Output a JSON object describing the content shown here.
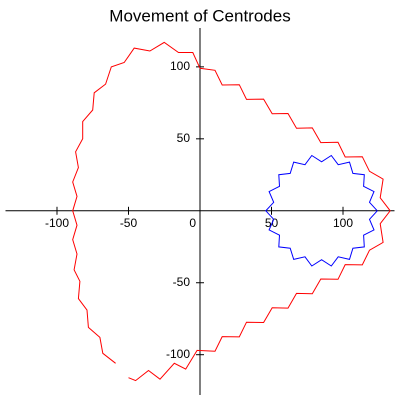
{
  "chart_data": {
    "type": "line",
    "title": "Movement of Centrodes",
    "xlim": [
      -136,
      136
    ],
    "ylim": [
      -128,
      127
    ],
    "xticks": [
      -100,
      -50,
      0,
      50,
      100
    ],
    "yticks": [
      -100,
      -50,
      50,
      100
    ],
    "series": [
      {
        "color": "#ff0000",
        "x": [
          -59,
          -68,
          -70,
          -78,
          -79,
          -85,
          -84,
          -88,
          -86,
          -89,
          -86,
          -89,
          -86,
          -89,
          -85,
          -87,
          -82,
          -82,
          -75,
          -74,
          -66,
          -62,
          -53,
          -46,
          -35,
          -25,
          -15,
          -5,
          0,
          10.5,
          15.5,
          27.5,
          32.5,
          44.5,
          50.5,
          61.5,
          67.5,
          78.5,
          84.5,
          96.5,
          101.5,
          113.5,
          118.5,
          128,
          126,
          133,
          126,
          128,
          118.5,
          113.5,
          101.5,
          96.5,
          84.5,
          78.5,
          67.5,
          61.5,
          50.5,
          44.5,
          32.5,
          27.5,
          15.5,
          10.5,
          -2,
          -10,
          -18,
          -28,
          -36,
          -45,
          -50
        ],
        "y": [
          -106,
          -99,
          -88,
          -81,
          -69,
          -61,
          -49,
          -41,
          -30,
          -20,
          -10,
          0,
          10,
          20,
          30,
          41,
          50,
          62,
          70,
          82,
          88,
          100,
          103,
          113,
          111,
          117,
          110,
          110,
          99,
          97.6,
          87.4,
          87.6,
          77.4,
          77.6,
          67.4,
          67.6,
          57.4,
          57.6,
          47.4,
          47.6,
          37.4,
          37.6,
          27.4,
          22,
          9,
          0,
          -9,
          -22,
          -27.4,
          -37.6,
          -37.4,
          -47.6,
          -47.4,
          -57.6,
          -57.4,
          -67.6,
          -67.4,
          -77.6,
          -77.4,
          -87.6,
          -87.4,
          -97.6,
          -97,
          -110,
          -106,
          -117,
          -111,
          -118,
          -116
        ]
      },
      {
        "color": "#0000ff",
        "x": [
          124,
          118.5,
          121.7,
          114.4,
          114.9,
          106.9,
          104.5,
          96.6,
          91.8,
          85,
          78.2,
          73.4,
          65.5,
          63.1,
          55.1,
          55.6,
          48.3,
          51.5,
          46,
          51.5,
          48.3,
          55.6,
          55.1,
          63.1,
          65.5,
          73.4,
          78.2,
          85,
          91.8,
          96.6,
          104.5,
          106.9,
          114.9,
          114.4,
          121.7,
          118.5,
          124
        ],
        "y": [
          0,
          5.9,
          13.3,
          17,
          25.1,
          26,
          33.8,
          32,
          38.4,
          34,
          38.4,
          32,
          33.8,
          26,
          25.1,
          17,
          13.3,
          5.9,
          0,
          -5.9,
          -13.3,
          -17,
          -25.1,
          -26,
          -33.8,
          -32,
          -38.4,
          -34,
          -38.4,
          -32,
          -33.8,
          -26,
          -25.1,
          -17,
          -13.3,
          -5.9,
          0
        ]
      }
    ]
  }
}
